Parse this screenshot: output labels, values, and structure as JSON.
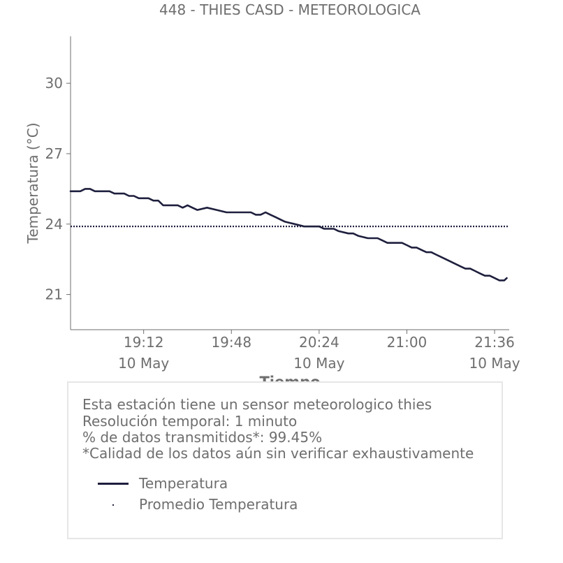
{
  "chart_data": {
    "type": "line",
    "title": "448 - THIES CASD - METEOROLOGICA",
    "xlabel": "Tiempo",
    "ylabel": "Temperatura (°C)",
    "ylim": [
      19.5,
      32.0
    ],
    "xlim": [
      "18:42",
      "21:42"
    ],
    "yticks": [
      21,
      24,
      27,
      30
    ],
    "xticks": [
      {
        "time": "19:12",
        "line1": "19:12",
        "line2": "10 May"
      },
      {
        "time": "19:48",
        "line1": "19:48",
        "line2": ""
      },
      {
        "time": "20:24",
        "line1": "20:24",
        "line2": "10 May"
      },
      {
        "time": "21:00",
        "line1": "21:00",
        "line2": ""
      },
      {
        "time": "21:36",
        "line1": "21:36",
        "line2": "10 May"
      }
    ],
    "grid": false,
    "series": [
      {
        "name": "Temperatura",
        "color": "#1e1f3d",
        "style": "solid",
        "points": [
          [
            "18:42",
            25.4
          ],
          [
            "18:46",
            25.4
          ],
          [
            "18:48",
            25.5
          ],
          [
            "18:50",
            25.5
          ],
          [
            "18:52",
            25.4
          ],
          [
            "18:56",
            25.4
          ],
          [
            "18:58",
            25.4
          ],
          [
            "19:00",
            25.3
          ],
          [
            "19:04",
            25.3
          ],
          [
            "19:06",
            25.2
          ],
          [
            "19:08",
            25.2
          ],
          [
            "19:10",
            25.1
          ],
          [
            "19:14",
            25.1
          ],
          [
            "19:16",
            25.0
          ],
          [
            "19:18",
            25.0
          ],
          [
            "19:20",
            24.8
          ],
          [
            "19:26",
            24.8
          ],
          [
            "19:28",
            24.7
          ],
          [
            "19:30",
            24.8
          ],
          [
            "19:32",
            24.7
          ],
          [
            "19:34",
            24.6
          ],
          [
            "19:38",
            24.7
          ],
          [
            "19:42",
            24.6
          ],
          [
            "19:46",
            24.5
          ],
          [
            "19:48",
            24.5
          ],
          [
            "19:52",
            24.5
          ],
          [
            "19:54",
            24.5
          ],
          [
            "19:56",
            24.5
          ],
          [
            "19:58",
            24.4
          ],
          [
            "20:00",
            24.4
          ],
          [
            "20:02",
            24.5
          ],
          [
            "20:04",
            24.4
          ],
          [
            "20:06",
            24.3
          ],
          [
            "20:08",
            24.2
          ],
          [
            "20:10",
            24.1
          ],
          [
            "20:12",
            24.05
          ],
          [
            "20:14",
            24.0
          ],
          [
            "20:16",
            23.95
          ],
          [
            "20:18",
            23.9
          ],
          [
            "20:24",
            23.9
          ],
          [
            "20:26",
            23.8
          ],
          [
            "20:30",
            23.8
          ],
          [
            "20:32",
            23.7
          ],
          [
            "20:36",
            23.6
          ],
          [
            "20:38",
            23.6
          ],
          [
            "20:40",
            23.5
          ],
          [
            "20:44",
            23.4
          ],
          [
            "20:48",
            23.4
          ],
          [
            "20:50",
            23.3
          ],
          [
            "20:52",
            23.2
          ],
          [
            "20:56",
            23.2
          ],
          [
            "20:58",
            23.2
          ],
          [
            "21:00",
            23.1
          ],
          [
            "21:02",
            23.0
          ],
          [
            "21:04",
            23.0
          ],
          [
            "21:06",
            22.9
          ],
          [
            "21:08",
            22.8
          ],
          [
            "21:10",
            22.8
          ],
          [
            "21:12",
            22.7
          ],
          [
            "21:14",
            22.6
          ],
          [
            "21:16",
            22.5
          ],
          [
            "21:18",
            22.4
          ],
          [
            "21:20",
            22.3
          ],
          [
            "21:22",
            22.2
          ],
          [
            "21:24",
            22.1
          ],
          [
            "21:26",
            22.1
          ],
          [
            "21:28",
            22.0
          ],
          [
            "21:30",
            21.9
          ],
          [
            "21:32",
            21.8
          ],
          [
            "21:34",
            21.8
          ],
          [
            "21:36",
            21.7
          ],
          [
            "21:38",
            21.6
          ],
          [
            "21:40",
            21.6
          ],
          [
            "21:41",
            21.7
          ]
        ]
      },
      {
        "name": "Promedio Temperatura",
        "color": "#1e1f3d",
        "style": "dotted",
        "value": 23.9
      }
    ],
    "legend": {
      "placement": "bottom",
      "items": [
        {
          "label": "Temperatura",
          "marker": "line"
        },
        {
          "label": "Promedio Temperatura",
          "marker": "dot"
        }
      ]
    }
  },
  "info": {
    "line1": "Esta estación tiene un sensor meteorologico thies",
    "line2": "Resolución temporal: 1 minuto",
    "line3": "% de datos transmitidos*: 99.45%",
    "line4": "*Calidad de los datos aún sin verificar exhaustivamente"
  }
}
